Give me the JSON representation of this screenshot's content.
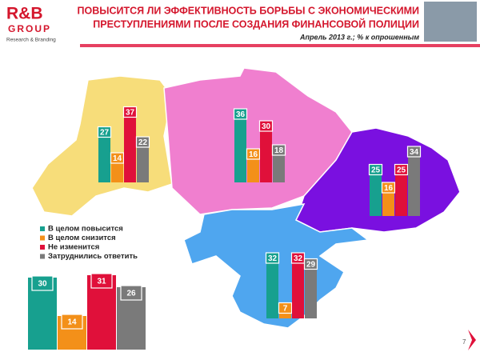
{
  "logo": {
    "name": "R&B",
    "group": "GROUP",
    "tagline": "Research & Branding"
  },
  "title": [
    "ПОВЫСИТСЯ ЛИ ЭФФЕКТИВНОСТЬ БОРЬБЫ С ЭКОНОМИЧЕСКИМИ",
    "ПРЕСТУПЛЕНИЯМИ ПОСЛЕ СОЗДАНИЯ ФИНАНСОВОЙ ПОЛИЦИИ"
  ],
  "subtitle": "Апрель 2013 г.; % к опрошенным",
  "legend": [
    {
      "name": "В целом повысится",
      "color": "#17a08f"
    },
    {
      "name": "В целом снизится",
      "color": "#f39019"
    },
    {
      "name": "Не изменится",
      "color": "#e0103a"
    },
    {
      "name": "Затруднились ответить",
      "color": "#7a7a7a"
    }
  ],
  "chart_data": [
    {
      "type": "bar",
      "values": [
        27,
        14,
        37,
        22
      ]
    },
    {
      "type": "bar",
      "values": [
        36,
        16,
        30,
        18
      ]
    },
    {
      "type": "bar",
      "values": [
        25,
        16,
        25,
        34
      ]
    },
    {
      "type": "bar",
      "values": [
        32,
        7,
        32,
        29
      ]
    },
    {
      "type": "bar",
      "values": [
        30,
        14,
        31,
        26
      ]
    }
  ],
  "page_number": "7"
}
